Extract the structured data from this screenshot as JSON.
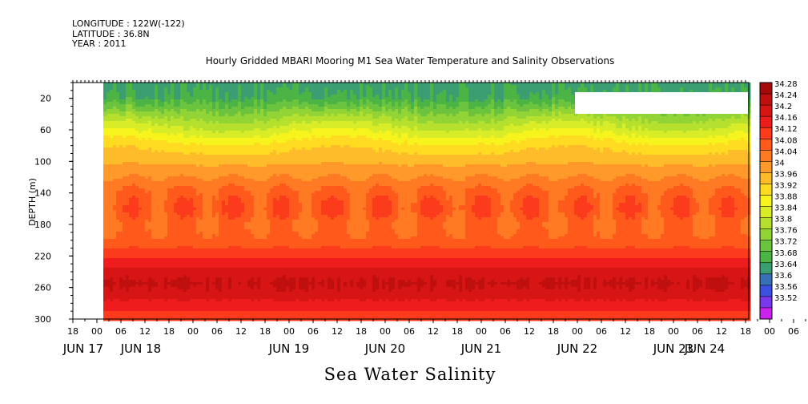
{
  "header": {
    "longitude": "LONGITUDE : 122W(-122)",
    "latitude": "LATITUDE : 36.8N",
    "year": "YEAR : 2011"
  },
  "title": "Hourly Gridded MBARI Mooring M1 Sea Water Temperature and Salinity Observations",
  "bottom_title": "Sea Water Salinity",
  "chart_data": {
    "type": "heatmap",
    "variable": "Sea Water Salinity",
    "ylabel": "DEPTH (m)",
    "y_axis": {
      "range": [
        300,
        0
      ],
      "inverted": true,
      "ticks": [
        20,
        60,
        100,
        140,
        180,
        220,
        260,
        300
      ]
    },
    "x_axis": {
      "range_hours": [
        "JUN 17 18",
        "JUN 24 20"
      ],
      "hour_ticks": [
        "18",
        "00",
        "06",
        "12",
        "18",
        "00",
        "06",
        "12",
        "18",
        "00",
        "06",
        "12",
        "18",
        "00",
        "06",
        "12",
        "18",
        "00",
        "06",
        "12",
        "18",
        "00",
        "06",
        "12",
        "18",
        "00",
        "06",
        "12",
        "18",
        "00",
        "06",
        "12",
        "18",
        "00",
        "06",
        "12",
        "18"
      ],
      "date_labels": [
        "JUN 17",
        "JUN 18",
        "JUN 19",
        "JUN 20",
        "JUN 21",
        "JUN 22",
        "JUN 23",
        "JUN 24"
      ]
    },
    "data_start": "JUN 18 02",
    "colorbar": {
      "levels": [
        "34.28",
        "34.24",
        "34.2",
        "34.16",
        "34.12",
        "34.08",
        "34.04",
        "34",
        "33.96",
        "33.92",
        "33.88",
        "33.84",
        "33.8",
        "33.76",
        "33.72",
        "33.68",
        "33.64",
        "33.6",
        "33.56",
        "33.52"
      ],
      "colors": [
        "#a50a0a",
        "#c00f0f",
        "#d81515",
        "#ee1c1c",
        "#fc3a1c",
        "#ff5a1c",
        "#ff7a22",
        "#ff9a2a",
        "#ffbc2a",
        "#ffdc22",
        "#f6f41c",
        "#d8ec28",
        "#b6e02e",
        "#92d336",
        "#6cc43e",
        "#4cb444",
        "#3a9e72",
        "#3870b8",
        "#3c4fe0",
        "#7a38ec",
        "#cc22ee"
      ]
    },
    "depth_profile": [
      {
        "depth": 5,
        "salinity": 33.67
      },
      {
        "depth": 20,
        "salinity": 33.69
      },
      {
        "depth": 40,
        "salinity": 33.78
      },
      {
        "depth": 60,
        "salinity": 33.86
      },
      {
        "depth": 80,
        "salinity": 33.94
      },
      {
        "depth": 100,
        "salinity": 33.99
      },
      {
        "depth": 120,
        "salinity": 34.04
      },
      {
        "depth": 140,
        "salinity": 34.09
      },
      {
        "depth": 160,
        "salinity": 34.11
      },
      {
        "depth": 180,
        "salinity": 34.08
      },
      {
        "depth": 200,
        "salinity": 34.09
      },
      {
        "depth": 220,
        "salinity": 34.15
      },
      {
        "depth": 240,
        "salinity": 34.22
      },
      {
        "depth": 255,
        "salinity": 34.245
      },
      {
        "depth": 270,
        "salinity": 34.22
      },
      {
        "depth": 285,
        "salinity": 34.17
      },
      {
        "depth": 300,
        "salinity": 34.13
      }
    ]
  }
}
